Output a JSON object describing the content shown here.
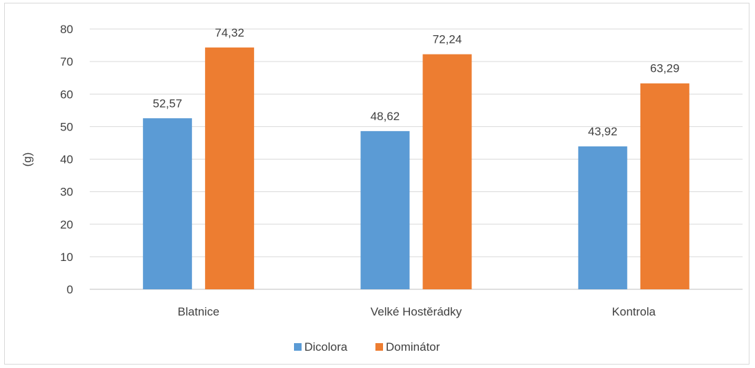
{
  "chart_data": {
    "type": "bar",
    "title": "",
    "xlabel": "",
    "ylabel": "(g)",
    "ylim": [
      0,
      80
    ],
    "yticks": [
      0,
      10,
      20,
      30,
      40,
      50,
      60,
      70,
      80
    ],
    "grid": true,
    "legend_position": "bottom",
    "categories": [
      "Blatnice",
      "Velké Hostěrádky",
      "Kontrola"
    ],
    "series": [
      {
        "name": "Dicolora",
        "color": "#5b9bd5",
        "values": [
          52.57,
          48.62,
          43.92
        ],
        "labels": [
          "52,57",
          "48,62",
          "43,92"
        ]
      },
      {
        "name": "Dominátor",
        "color": "#ed7d31",
        "values": [
          74.32,
          72.24,
          63.29
        ],
        "labels": [
          "74,32",
          "72,24",
          "63,29"
        ]
      }
    ]
  }
}
